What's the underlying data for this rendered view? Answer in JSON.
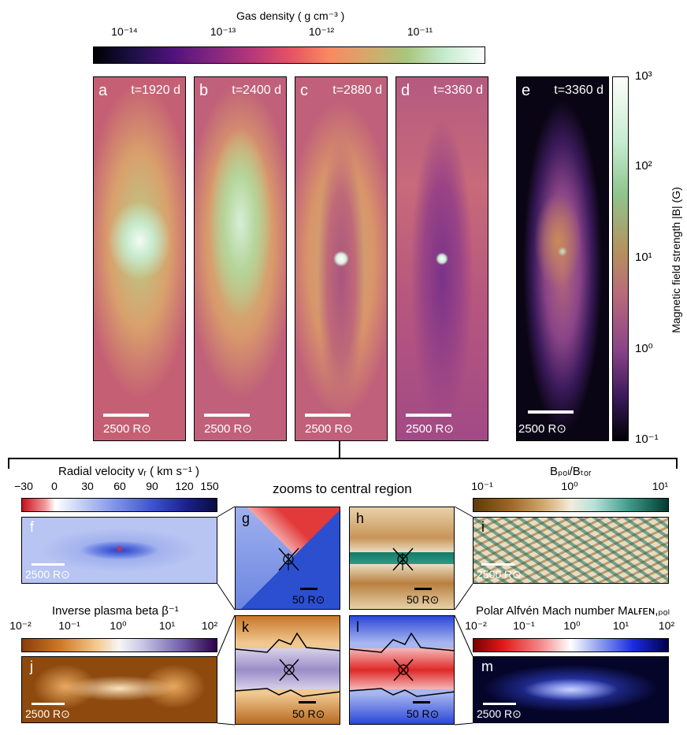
{
  "gas_density_cb": {
    "label": "Gas density ( g cm⁻³ )",
    "ticks": [
      "10⁻¹⁴",
      "10⁻¹³",
      "10⁻¹²",
      "10⁻¹¹"
    ]
  },
  "top_panels": [
    {
      "letter": "a",
      "time": "t=1920 d",
      "scale": "2500 R⊙"
    },
    {
      "letter": "b",
      "time": "t=2400 d",
      "scale": "2500 R⊙"
    },
    {
      "letter": "c",
      "time": "t=2880 d",
      "scale": "2500 R⊙"
    },
    {
      "letter": "d",
      "time": "t=3360 d",
      "scale": "2500 R⊙"
    },
    {
      "letter": "e",
      "time": "t=3360 d",
      "scale": "2500 R⊙"
    }
  ],
  "bfield_cb": {
    "label": "Magnetic field strength |B| (G)",
    "ticks": [
      "10³",
      "10²",
      "10¹",
      "10⁰",
      "10⁻¹"
    ]
  },
  "vr_cb": {
    "label": "Radial velocity vᵣ ( km s⁻¹ )",
    "ticks": [
      "−30",
      "0",
      "30",
      "60",
      "90",
      "120",
      "150"
    ]
  },
  "zoom_title": "zooms to central region",
  "bratio_cb": {
    "label": "Bₚₒₗ/Bₜₒᵣ",
    "ticks": [
      "10⁻¹",
      "10⁰",
      "10¹"
    ]
  },
  "beta_cb": {
    "label": "Inverse plasma beta β⁻¹",
    "ticks": [
      "10⁻²",
      "10⁻¹",
      "10⁰",
      "10¹",
      "10²"
    ]
  },
  "mach_cb": {
    "label": "Polar Alfvén Mach number Mᴀʟғᴇɴ,ₚₒₗ",
    "ticks": [
      "10⁻²",
      "10⁻¹",
      "10⁰",
      "10¹",
      "10²"
    ]
  },
  "lower_panels": {
    "f": {
      "letter": "f",
      "scale": "2500 R⊙"
    },
    "g": {
      "letter": "g",
      "scale": "50 R⊙"
    },
    "h": {
      "letter": "h",
      "scale": "50 R⊙"
    },
    "i": {
      "letter": "i",
      "scale": "2500 R⊙"
    },
    "j": {
      "letter": "j",
      "scale": "2500 R⊙"
    },
    "k": {
      "letter": "k",
      "scale": "50 R⊙"
    },
    "l": {
      "letter": "l",
      "scale": "50 R⊙"
    },
    "m": {
      "letter": "m",
      "scale": "2500 R⊙"
    }
  }
}
